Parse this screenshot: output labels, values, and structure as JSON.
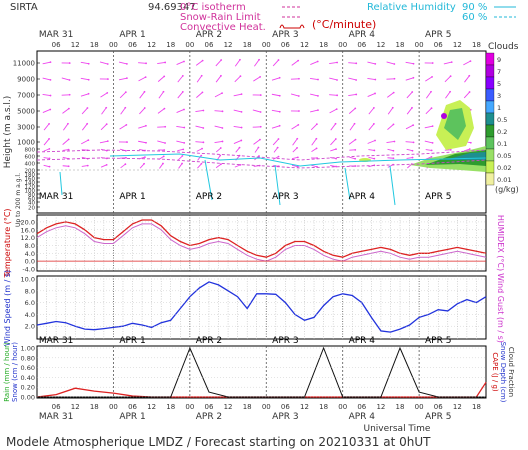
{
  "header": {
    "station": "SIRTA",
    "coords": "94.69347",
    "legend": {
      "isotherm": "0°C isotherm",
      "snow_rain": "Snow-Rain Limit",
      "convective": "Convective Heat.",
      "convective_unit": "(°C/minute)",
      "rh_label": "Relative Humidity",
      "rh_90": "90 %",
      "rh_60": "60 %"
    }
  },
  "clouds_legend": {
    "title": "Clouds",
    "unit": "(g/kg)",
    "levels": [
      "9",
      "7",
      "5",
      "3",
      "1",
      "0.5",
      "0.2",
      "0.1",
      "0.05",
      "0.02",
      "0.01"
    ],
    "colors": [
      "#e000e0",
      "#b000e0",
      "#8800ff",
      "#3a5cff",
      "#45a8ff",
      "#1e8f8f",
      "#2e9c2e",
      "#5dc35d",
      "#99e066",
      "#c8f055",
      "#f0f0a0"
    ]
  },
  "time_axis": {
    "days": [
      "MAR 31",
      "APR 1",
      "APR 2",
      "APR 3",
      "APR 4",
      "APR 5"
    ],
    "hours": [
      "06",
      "12",
      "18",
      "00",
      "06",
      "12",
      "18",
      "00",
      "06",
      "12",
      "18",
      "00",
      "06",
      "12",
      "18",
      "00",
      "06",
      "12",
      "18",
      "00",
      "06",
      "12",
      "18"
    ],
    "xlabel": "Universal Time"
  },
  "footer": "Modele Atmospherique LMDZ / Forecast starting on 20210331 at 0hUT",
  "chart_data": [
    {
      "type": "heatmap",
      "ylabel": "Height (m a.s.l.)",
      "ylabel_low": "Up to 200 m a.g.l.",
      "yticks": [
        "11000",
        "9000",
        "7000",
        "5000",
        "3000",
        "1000",
        "800",
        "600",
        "400",
        "200",
        "180",
        "160",
        "140",
        "120",
        "100",
        "80",
        "60",
        "40",
        "20"
      ]
    },
    {
      "type": "line",
      "ylabel": "Temperature (°C)",
      "ylabel_right": "HUMIDEX (°C)",
      "yticks": [
        "20.0",
        "16.0",
        "12.0",
        "8.0",
        "4.0",
        "0.0",
        "-4.0"
      ],
      "ylim": [
        -4,
        22
      ],
      "x": [
        0,
        3,
        6,
        9,
        12,
        15,
        18,
        21,
        24,
        27,
        30,
        33,
        36,
        39,
        42,
        45,
        48,
        51,
        54,
        57,
        60,
        63,
        66,
        69,
        72,
        75,
        78,
        81,
        84,
        87,
        90,
        93,
        96,
        99,
        102,
        105,
        108,
        111,
        114,
        117,
        120,
        123,
        126,
        129,
        132,
        135,
        138,
        141
      ],
      "series": [
        {
          "values": [
            14,
            17,
            19,
            20,
            19,
            16,
            12,
            11,
            11,
            15,
            19,
            21,
            21,
            18,
            13,
            10,
            8,
            9,
            11,
            12,
            11,
            8,
            5,
            3,
            2,
            4,
            8,
            10,
            10,
            8,
            5,
            3,
            2,
            4,
            5,
            6,
            7,
            6,
            4,
            3,
            4,
            4,
            5,
            6,
            7,
            6,
            5,
            4
          ]
        },
        {
          "values": [
            12,
            15,
            17,
            18,
            17,
            14,
            10,
            9,
            9,
            13,
            17,
            19,
            19,
            16,
            11,
            8,
            6,
            7,
            9,
            10,
            9,
            6,
            3,
            1,
            0,
            2,
            6,
            8,
            8,
            6,
            3,
            1,
            0,
            2,
            3,
            4,
            5,
            4,
            2,
            1,
            2,
            2,
            3,
            4,
            5,
            4,
            3,
            2
          ]
        }
      ]
    },
    {
      "type": "line",
      "ylabel": "Wind Speed (m / s)",
      "ylabel_right": "Wind Gust (m / s)",
      "yticks": [
        "10.0",
        "8.0",
        "6.0",
        "4.0",
        "2.0"
      ],
      "ylim": [
        0,
        10
      ],
      "x": [
        0,
        3,
        6,
        9,
        12,
        15,
        18,
        21,
        24,
        27,
        30,
        33,
        36,
        39,
        42,
        45,
        48,
        51,
        54,
        57,
        60,
        63,
        66,
        69,
        72,
        75,
        78,
        81,
        84,
        87,
        90,
        93,
        96,
        99,
        102,
        105,
        108,
        111,
        114,
        117,
        120,
        123,
        126,
        129,
        132,
        135,
        138,
        141
      ],
      "series": [
        {
          "values": [
            2.2,
            2.5,
            2.8,
            2.6,
            2.0,
            1.5,
            1.4,
            1.6,
            1.8,
            2.0,
            2.5,
            2.2,
            1.8,
            2.6,
            3.0,
            5.0,
            7.0,
            8.5,
            9.5,
            9.0,
            8.0,
            7.0,
            5.0,
            7.5,
            7.5,
            7.4,
            6.0,
            4.0,
            3.0,
            3.5,
            5.5,
            7.0,
            7.5,
            7.2,
            6.0,
            3.5,
            1.2,
            1.0,
            1.5,
            2.2,
            3.5,
            4.0,
            4.8,
            4.6,
            5.8,
            6.5,
            6.0,
            7.0
          ]
        }
      ]
    },
    {
      "type": "line",
      "ylabel": "Rain (mm / hour)",
      "ylabel_snow": "Snow (cm / hour)",
      "ylabel_right": "CAPE (J / g)",
      "ylabel_right2": "Snow Depth (cm)",
      "ylabel_right3": "Cloud Fraction",
      "yticks": [
        "1.00",
        "0.80",
        "0.60",
        "0.40",
        "0.20",
        "0.00"
      ],
      "ylim": [
        0,
        1
      ],
      "x": [
        0,
        6,
        12,
        18,
        24,
        30,
        36,
        42,
        48,
        54,
        60,
        66,
        72,
        78,
        84,
        90,
        96,
        102,
        108,
        114,
        120,
        126,
        132,
        138,
        141
      ],
      "series": [
        {
          "values": [
            0,
            0.05,
            0.18,
            0.12,
            0.08,
            0.02,
            0,
            0,
            0,
            0,
            0,
            0,
            0,
            0,
            0,
            0,
            0,
            0,
            0,
            0,
            0,
            0,
            0,
            0,
            0.3
          ]
        },
        {
          "values": [
            0,
            0,
            0,
            0,
            0,
            0,
            0,
            0,
            1.0,
            0.1,
            0,
            0,
            0,
            0,
            0,
            1.0,
            0,
            0,
            0,
            1.0,
            0.1,
            0,
            0,
            0,
            0
          ]
        }
      ]
    }
  ]
}
